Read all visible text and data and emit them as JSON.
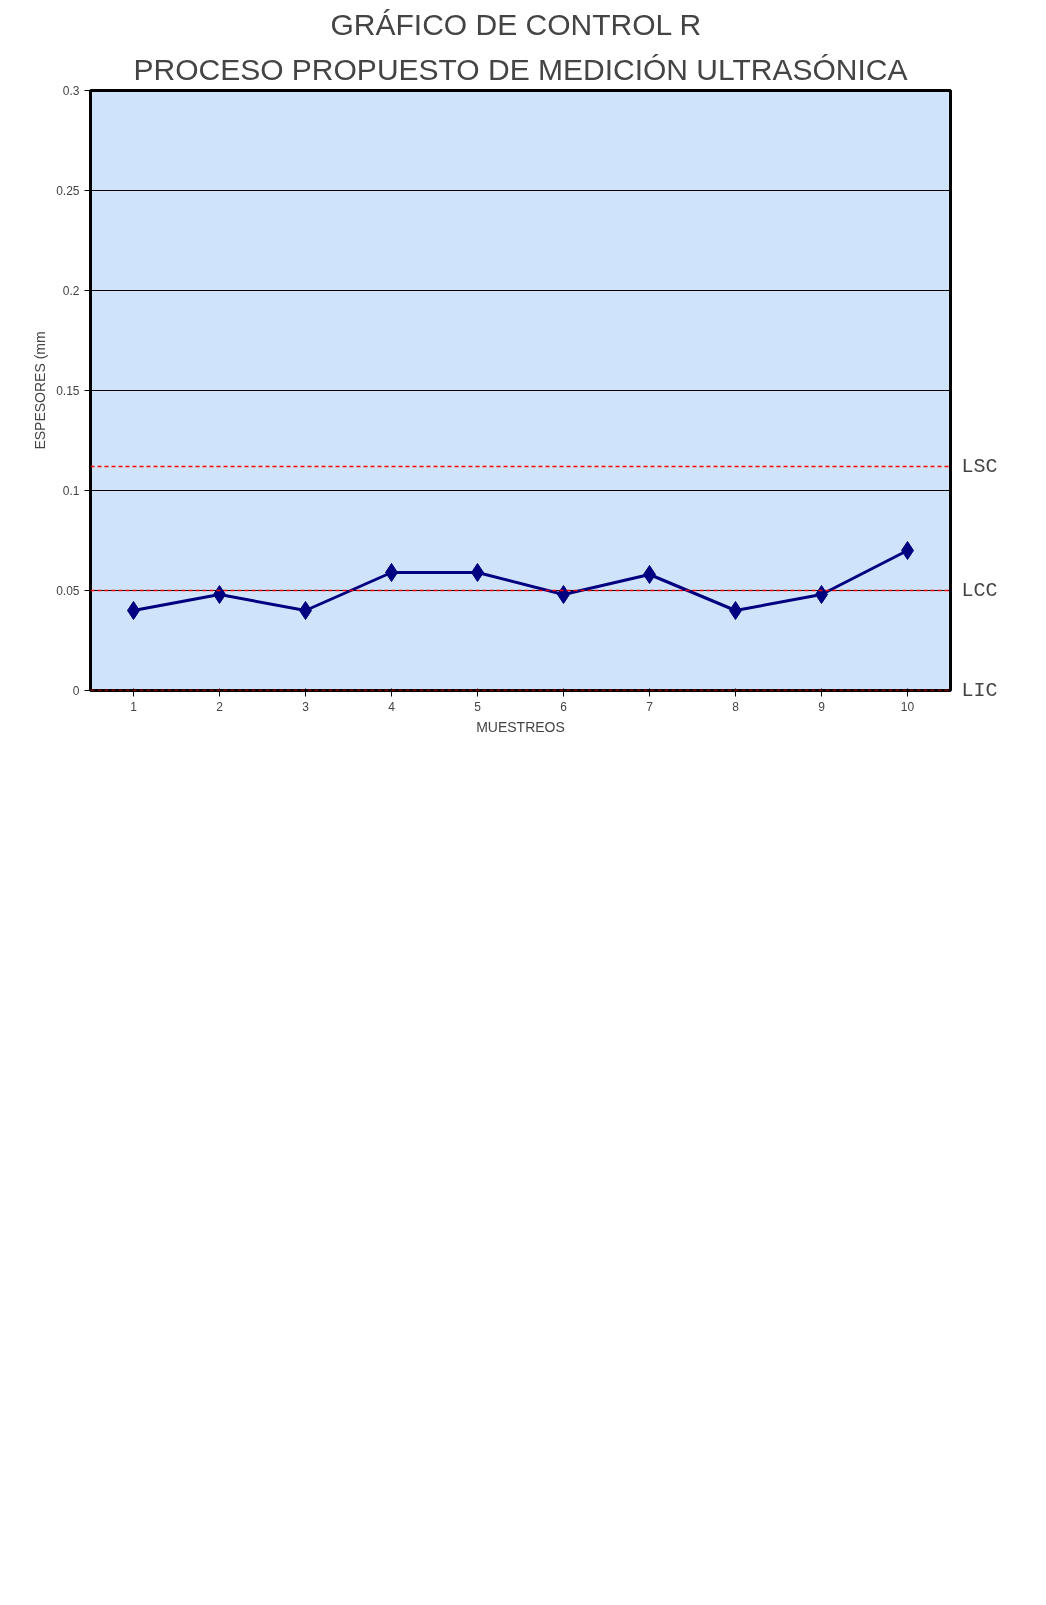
{
  "chart_data": {
    "type": "line",
    "title": "GRÁFICO DE CONTROL  R",
    "subtitle": "PROCESO PROPUESTO DE MEDICIÓN ULTRASÓNICA",
    "xlabel": "MUESTREOS",
    "ylabel": "ESPESORES (mm",
    "categories": [
      "1",
      "2",
      "3",
      "4",
      "5",
      "6",
      "7",
      "8",
      "9",
      "10"
    ],
    "series": [
      {
        "color": "#000080",
        "values": [
          0.04,
          0.048,
          0.04,
          0.059,
          0.059,
          0.048,
          0.058,
          0.04,
          0.048,
          0.07
        ]
      }
    ],
    "ylim": [
      0,
      0.3
    ],
    "yticks": [
      0,
      0.05,
      0.1,
      0.15,
      0.2,
      0.25,
      0.3
    ],
    "grid": "y",
    "marker": "diamond",
    "line_style": "solid",
    "ref_lines": [
      {
        "axis": "y",
        "value": 0.112,
        "label": "LSC",
        "color": "#ff0000",
        "line_style": "dashed"
      },
      {
        "axis": "y",
        "value": 0.05,
        "label": "LCC",
        "color": "#ff0000",
        "line_style": "dashed"
      },
      {
        "axis": "y",
        "value": 0,
        "label": "LIC",
        "color": "#ff0000",
        "line_style": "dashed"
      }
    ]
  }
}
